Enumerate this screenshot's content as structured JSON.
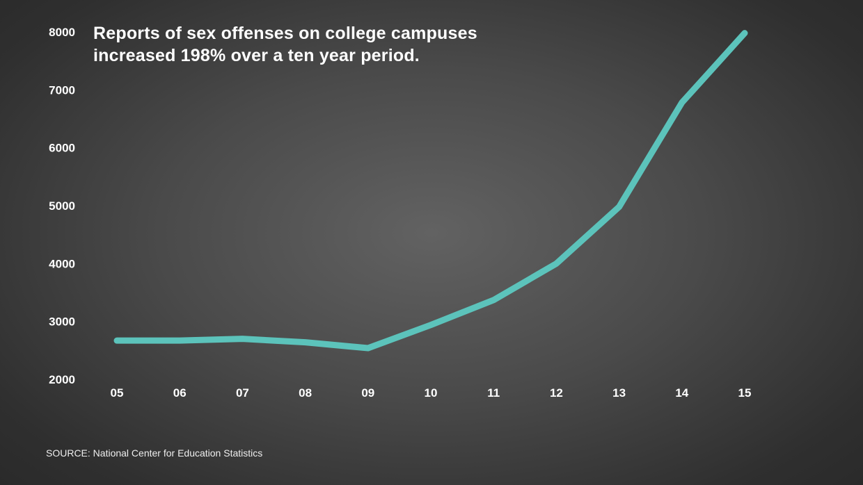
{
  "chart_data": {
    "type": "line",
    "title_lines": [
      "Reports of sex offenses on college campuses",
      "increased 198% over a ten year period."
    ],
    "categories": [
      "05",
      "06",
      "07",
      "08",
      "09",
      "10",
      "11",
      "12",
      "13",
      "14",
      "15"
    ],
    "series": [
      {
        "name": "Reports of sex offenses",
        "values": [
          2670,
          2670,
          2700,
          2640,
          2540,
          2940,
          3370,
          4000,
          4980,
          6780,
          7980
        ],
        "color": "#5cc3bb"
      }
    ],
    "yticks": [
      "2000",
      "3000",
      "4000",
      "5000",
      "6000",
      "7000",
      "8000"
    ],
    "ylim": [
      2000,
      8000
    ],
    "xlabel": "",
    "ylabel": "",
    "grid": false,
    "source": "SOURCE: National Center for Education Statistics"
  }
}
